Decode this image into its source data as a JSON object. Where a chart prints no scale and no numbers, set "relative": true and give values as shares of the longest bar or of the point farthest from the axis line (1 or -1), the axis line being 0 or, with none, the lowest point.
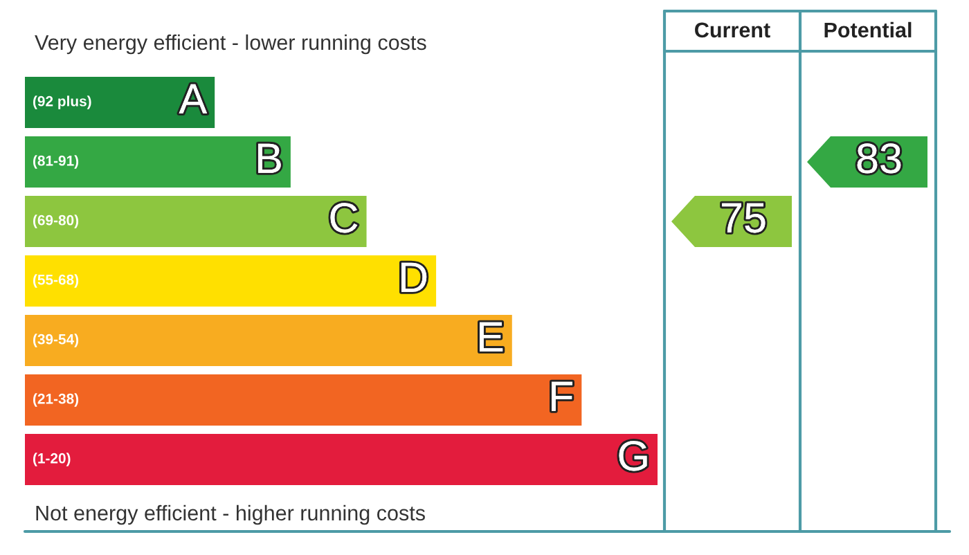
{
  "chart_data": {
    "type": "bar",
    "orientation": "horizontal",
    "relative": true,
    "tick_labels": false,
    "title": "Very energy efficient - lower running costs",
    "categories": [
      "(92 plus)",
      "(81-91)",
      "(69-80)",
      "(55-68)",
      "(39-54)",
      "(21-38)",
      "(1-20)"
    ],
    "values": [
      0.3,
      0.42,
      0.54,
      0.65,
      0.77,
      0.88,
      1
    ],
    "colors": [
      "#1a8a3c",
      "#34a844",
      "#8dc63f",
      "#ffe000",
      "#f8ac20",
      "#f26522",
      "#e31c3d"
    ],
    "annotations": [
      "Not energy efficient - higher running costs",
      "Current",
      "Potential",
      "75",
      "83",
      {
        "text": "A",
        "x": 0.3,
        "y": "(92 plus)"
      },
      {
        "text": "B",
        "x": 0.42,
        "y": "(81-91)"
      },
      {
        "text": "C",
        "x": 0.54,
        "y": "(69-80)"
      },
      {
        "text": "D",
        "x": 0.65,
        "y": "(55-68)"
      },
      {
        "text": "E",
        "x": 0.77,
        "y": "(39-54)"
      },
      {
        "text": "F",
        "x": 0.88,
        "y": "(21-38)"
      },
      {
        "text": "G",
        "x": 1,
        "y": "(1-20)"
      }
    ]
  }
}
